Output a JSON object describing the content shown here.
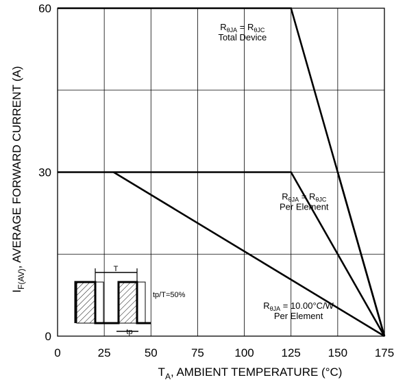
{
  "chart_data": {
    "type": "line",
    "xlabel": "T_A, AMBIENT TEMPERATURE (°C)",
    "xlabel_main": "T",
    "xlabel_sub": "A",
    "xlabel_rest": ", AMBIENT TEMPERATURE (°C)",
    "ylabel": "I_F(AV), AVERAGE FORWARD CURRENT (A)",
    "ylabel_main": "I",
    "ylabel_sub": "F(AV)",
    "ylabel_rest": ", AVERAGE FORWARD CURRENT (A)",
    "xlim": [
      0,
      175
    ],
    "ylim": [
      0,
      60
    ],
    "x_ticks": [
      0,
      25,
      50,
      75,
      100,
      125,
      150,
      175
    ],
    "x_tick_labels": [
      "0",
      "25",
      "50",
      "75",
      "100",
      "125",
      "150",
      "175"
    ],
    "y_ticks": [
      0,
      30,
      60
    ],
    "y_tick_labels": [
      "0",
      "30",
      "60"
    ],
    "grid": true,
    "x_grid": [
      25,
      50,
      75,
      100,
      125,
      150
    ],
    "y_grid": [
      15,
      30,
      45
    ],
    "series": [
      {
        "x": [
          0,
          125,
          175
        ],
        "y": [
          60,
          60,
          0
        ]
      },
      {
        "x": [
          0,
          125,
          175
        ],
        "y": [
          30,
          30,
          0
        ]
      },
      {
        "x": [
          150,
          175
        ],
        "y": [
          30,
          0
        ]
      },
      {
        "x": [
          30,
          175
        ],
        "y": [
          30,
          0
        ]
      }
    ],
    "annotations": [
      {
        "line1_main": "R",
        "line1_sub1": "θJA",
        "line1_mid": " = R",
        "line1_sub2": "θJC",
        "line2": "Total Device",
        "x": 99,
        "y": 56
      },
      {
        "line1_main": "R",
        "line1_sub1": "θJA",
        "line1_mid": " = R",
        "line1_sub2": "θJC",
        "line2": "Per Element",
        "x": 132,
        "y": 25
      },
      {
        "line1_main": "R",
        "line1_sub1": "θJA",
        "line1_mid": " = 10.00°C/W",
        "line1_sub2": "",
        "line2": "Per Element",
        "x": 129,
        "y": 5
      }
    ],
    "inset": {
      "period_label": "T",
      "pulse_label": "tp",
      "duty_label": "tp/T=50%"
    }
  }
}
